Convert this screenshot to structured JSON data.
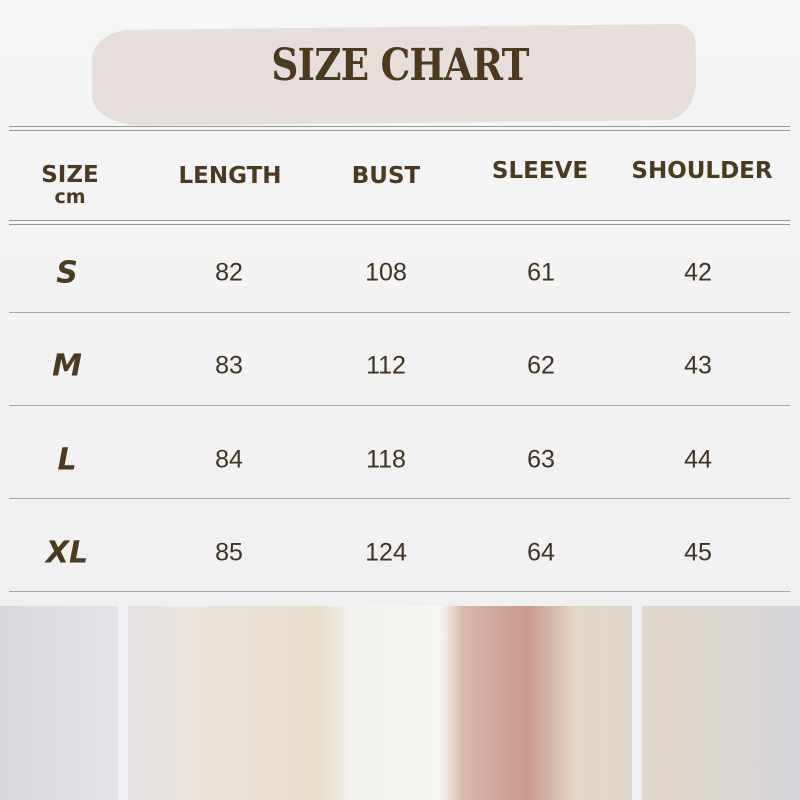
{
  "title": "SIZE CHART",
  "headers": {
    "size": "SIZE",
    "unit": "cm",
    "length": "LENGTH",
    "bust": "BUST",
    "sleeve": "SLEEVE",
    "shoulder": "SHOULDER"
  },
  "rows": [
    {
      "size": "S",
      "length": "82",
      "bust": "108",
      "sleeve": "61",
      "shoulder": "42"
    },
    {
      "size": "M",
      "length": "83",
      "bust": "112",
      "sleeve": "62",
      "shoulder": "43"
    },
    {
      "size": "L",
      "length": "84",
      "bust": "118",
      "sleeve": "63",
      "shoulder": "44"
    },
    {
      "size": "XL",
      "length": "85",
      "bust": "124",
      "sleeve": "64",
      "shoulder": "45"
    }
  ],
  "colors": {
    "text": "#4b3a20",
    "banner": "#e6dedb"
  }
}
